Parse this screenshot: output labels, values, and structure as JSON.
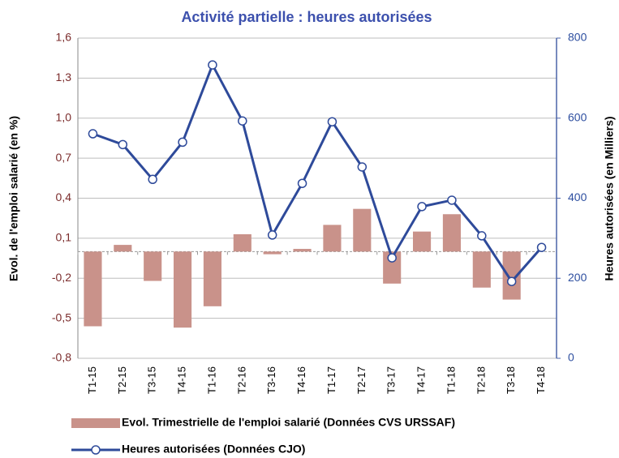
{
  "chart_data": {
    "type": "combo",
    "title": "Activité partielle : heures autorisées",
    "y_label": "Evol. de l'emploi salarié (en %)",
    "y2_label": "Heures autorisées (en Milliers)",
    "categories": [
      "T1-15",
      "T2-15",
      "T3-15",
      "T4-15",
      "T1-16",
      "T2-16",
      "T3-16",
      "T4-16",
      "T1-17",
      "T2-17",
      "T3-17",
      "T4-17",
      "T1-18",
      "T2-18",
      "T3-18",
      "T4-18"
    ],
    "series": [
      {
        "name": "Evol. Trimestrielle de l'emploi salarié (Données CVS URSSAF)",
        "type": "bar",
        "axis": "y",
        "color": "#c9928a",
        "values": [
          -0.56,
          0.05,
          -0.22,
          -0.57,
          -0.41,
          0.13,
          -0.02,
          0.02,
          0.2,
          0.32,
          -0.24,
          0.15,
          0.28,
          -0.27,
          -0.36,
          null
        ]
      },
      {
        "name": "Heures autorisées (Données CJO)",
        "type": "line",
        "axis": "y2",
        "color": "#2e4a9a",
        "values": [
          561,
          534,
          447,
          540,
          733,
          593,
          308,
          437,
          591,
          478,
          251,
          379,
          395,
          306,
          192,
          277
        ]
      }
    ],
    "ylim": [
      -0.8,
      1.6
    ],
    "yticks": [
      {
        "value": -0.8,
        "label": "-0,8"
      },
      {
        "value": -0.5,
        "label": "-0,5"
      },
      {
        "value": -0.2,
        "label": "-0,2"
      },
      {
        "value": 0.1,
        "label": "0,1"
      },
      {
        "value": 0.4,
        "label": "0,4"
      },
      {
        "value": 0.7,
        "label": "0,7"
      },
      {
        "value": 1.0,
        "label": "1,0"
      },
      {
        "value": 1.3,
        "label": "1,3"
      },
      {
        "value": 1.6,
        "label": "1,6"
      }
    ],
    "y2lim": [
      0,
      800
    ],
    "y2ticks": [
      0,
      200,
      400,
      600,
      800
    ],
    "grid": true,
    "legend": "bottom"
  }
}
